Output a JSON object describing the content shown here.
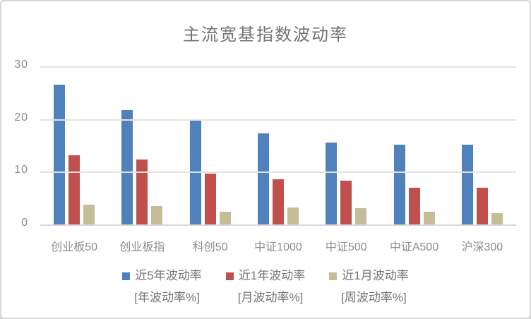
{
  "card": {
    "background": "#ffffff",
    "border_color": "#d8d8d8"
  },
  "chart_data": {
    "type": "bar",
    "title": "主流宽基指数波动率",
    "title_color": "#737373",
    "categories": [
      "创业板50",
      "创业板指",
      "科创50",
      "中证1000",
      "中证500",
      "中证A500",
      "沪深300"
    ],
    "series": [
      {
        "name": "近5年波动率",
        "sublabel": "[年波动率%]",
        "color": "#4F81BD",
        "values": [
          26.5,
          21.7,
          19.8,
          17.3,
          15.5,
          15.2,
          15.2
        ]
      },
      {
        "name": "近1年波动率",
        "sublabel": "[月波动率%]",
        "color": "#C0504D",
        "values": [
          13.1,
          12.3,
          9.6,
          8.6,
          8.3,
          7.0,
          6.9
        ]
      },
      {
        "name": "近1月波动率",
        "sublabel": "[周波动率%]",
        "color": "#C4BD97",
        "values": [
          3.7,
          3.5,
          2.4,
          3.2,
          3.1,
          2.4,
          2.2
        ]
      }
    ],
    "xlabel": "",
    "ylabel": "",
    "ylim": [
      0,
      30
    ],
    "yticks": [
      0,
      10,
      20,
      30
    ],
    "grid": true,
    "gridline_color": "#e2e2e2",
    "axis_label_color": "#8c8c8c",
    "legend_position": "bottom"
  }
}
